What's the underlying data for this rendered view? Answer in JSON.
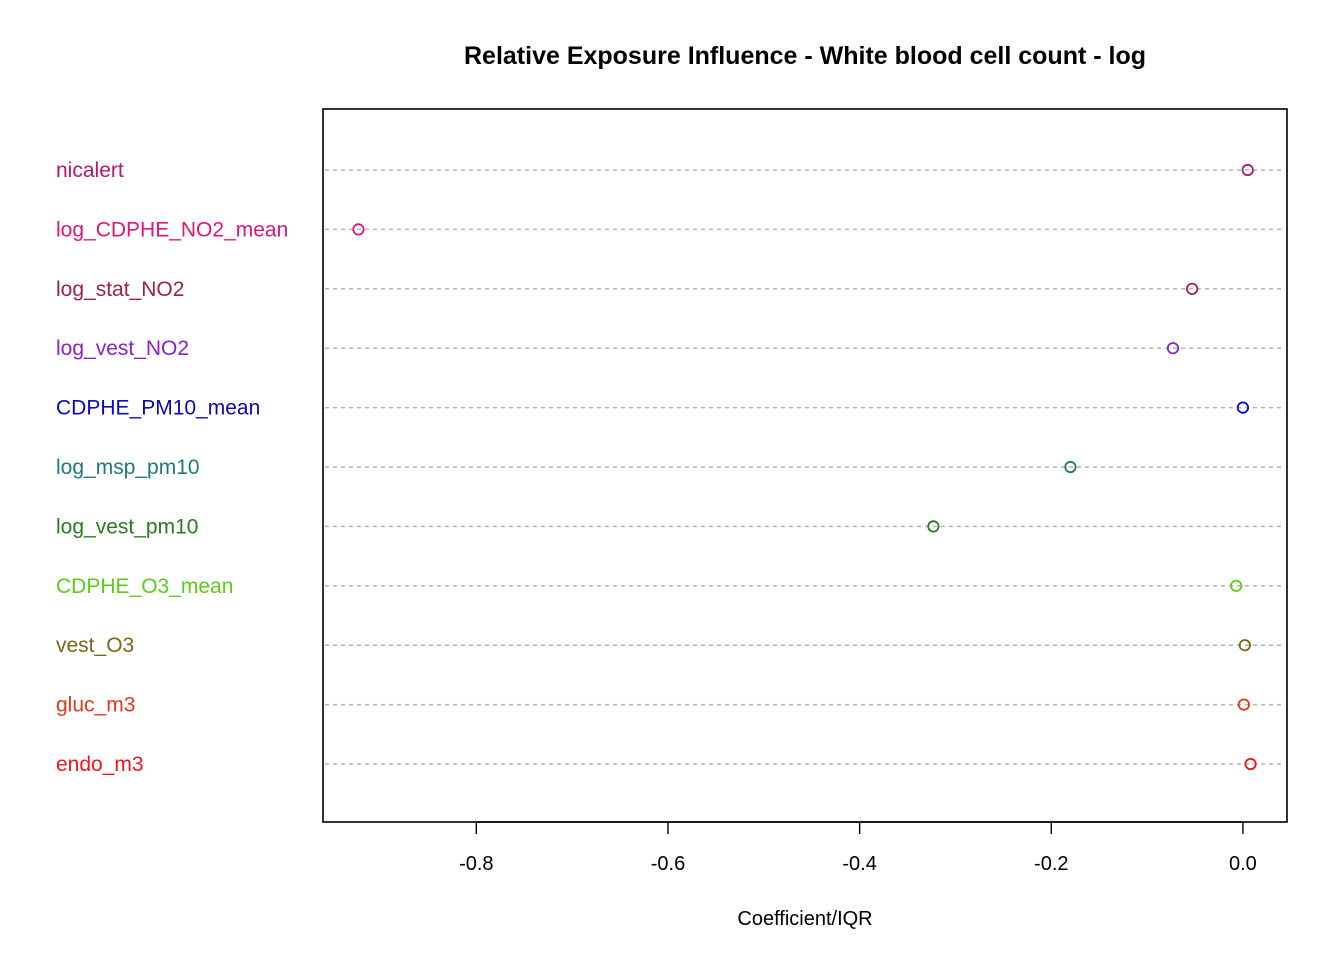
{
  "chart_data": {
    "type": "scatter",
    "title": "Relative Exposure Influence - White blood cell count - log",
    "xlabel": "Coefficient/IQR",
    "ylabel": "",
    "xlim": [
      -0.96,
      0.046
    ],
    "xticks": [
      -0.8,
      -0.6,
      -0.4,
      -0.2,
      0.0
    ],
    "xtick_labels": [
      "-0.8",
      "-0.6",
      "-0.4",
      "-0.2",
      "0.0"
    ],
    "grid": "horizontal dashed lines",
    "categories": [
      {
        "name": "nicalert",
        "value": 0.005,
        "color": "#B5176E"
      },
      {
        "name": "log_CDPHE_NO2_mean",
        "value": -0.923,
        "color": "#E0157A"
      },
      {
        "name": "log_stat_NO2",
        "value": -0.053,
        "color": "#9E1F4E"
      },
      {
        "name": "log_vest_NO2",
        "value": -0.073,
        "color": "#8A22C8"
      },
      {
        "name": "CDPHE_PM10_mean",
        "value": 0.0,
        "color": "#0A0AB8"
      },
      {
        "name": "log_msp_pm10",
        "value": -0.18,
        "color": "#1E7A7A"
      },
      {
        "name": "log_vest_pm10",
        "value": -0.323,
        "color": "#2A7A22"
      },
      {
        "name": "CDPHE_O3_mean",
        "value": -0.007,
        "color": "#5CCB1A"
      },
      {
        "name": "vest_O3",
        "value": 0.002,
        "color": "#7A6614"
      },
      {
        "name": "gluc_m3",
        "value": 0.001,
        "color": "#E2381C"
      },
      {
        "name": "endo_m3",
        "value": 0.008,
        "color": "#F0141E"
      }
    ]
  }
}
